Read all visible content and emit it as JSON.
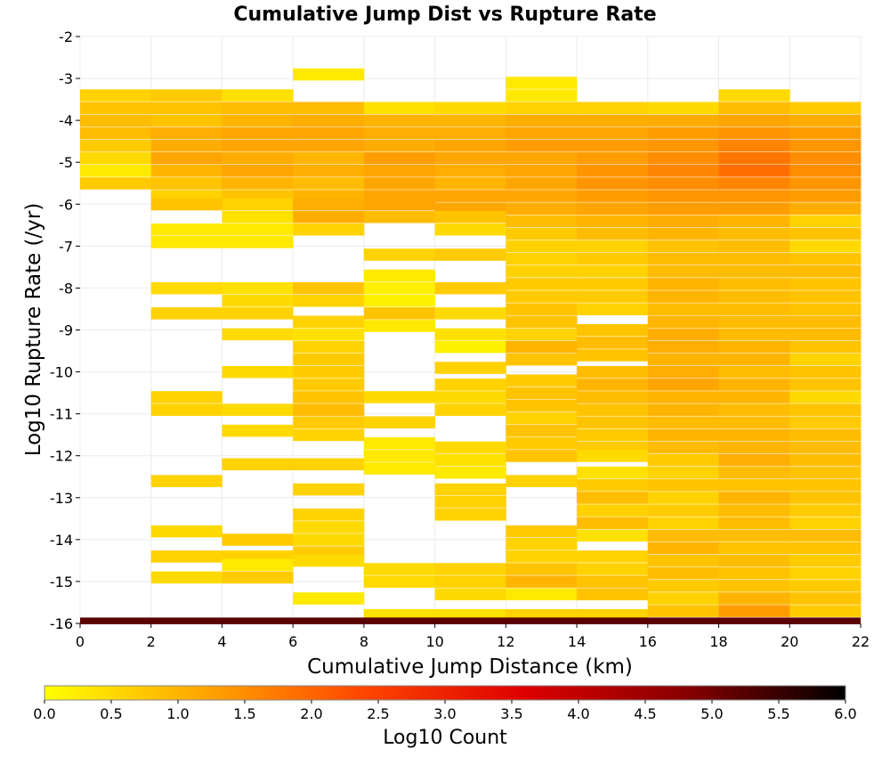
{
  "chart_data": {
    "type": "heatmap",
    "title": "Cumulative Jump Dist vs Rupture Rate",
    "xlabel": "Cumulative Jump Distance (km)",
    "ylabel": "Log10 Rupture Rate (/yr)",
    "xlim": [
      0,
      22
    ],
    "ylim": [
      -16,
      -2
    ],
    "x_ticks": [
      "0",
      "2",
      "4",
      "6",
      "8",
      "10",
      "12",
      "14",
      "16",
      "18",
      "20",
      "22"
    ],
    "y_ticks": [
      "-2",
      "-3",
      "-4",
      "-5",
      "-6",
      "-7",
      "-8",
      "-9",
      "-10",
      "-11",
      "-12",
      "-13",
      "-14",
      "-15",
      "-16"
    ],
    "x_bin_width": 2,
    "y_bin_height": 0.28,
    "x_bins": [
      1,
      3,
      5,
      7,
      9,
      11,
      13,
      15,
      17,
      19,
      21
    ],
    "colorbar": {
      "label": "Log10 Count",
      "range": [
        0,
        6
      ],
      "ticks": [
        "0.0",
        "0.5",
        "1.0",
        "1.5",
        "2.0",
        "2.5",
        "3.0",
        "3.5",
        "4.0",
        "4.5",
        "5.0",
        "5.5",
        "6.0"
      ],
      "colors": [
        "#ffff00",
        "#ffa500",
        "#ff4500",
        "#dd0000",
        "#880000",
        "#000000"
      ]
    },
    "baseline_row": {
      "y": -15.94,
      "value": 5.2,
      "x_range": [
        0,
        22
      ]
    },
    "columns": [
      [
        [
          -3.4,
          0.6
        ],
        [
          -3.7,
          0.8
        ],
        [
          -4.0,
          0.9
        ],
        [
          -4.3,
          0.9
        ],
        [
          -4.6,
          0.7
        ],
        [
          -4.9,
          0.5
        ],
        [
          -5.2,
          0.3
        ],
        [
          -5.5,
          0.7
        ]
      ],
      [
        [
          -3.4,
          0.7
        ],
        [
          -3.7,
          0.8
        ],
        [
          -4.0,
          0.8
        ],
        [
          -4.3,
          1.1
        ],
        [
          -4.6,
          1.1
        ],
        [
          -4.9,
          1.2
        ],
        [
          -5.2,
          1.0
        ],
        [
          -5.5,
          0.8
        ],
        [
          -5.8,
          0.6
        ],
        [
          -6.0,
          0.8
        ],
        [
          -6.6,
          0.3
        ],
        [
          -6.9,
          0.3
        ],
        [
          -8.0,
          0.5
        ],
        [
          -8.6,
          0.6
        ],
        [
          -10.6,
          0.6
        ],
        [
          -10.9,
          0.6
        ],
        [
          -12.6,
          0.6
        ],
        [
          -13.8,
          0.5
        ],
        [
          -14.4,
          0.6
        ],
        [
          -14.9,
          0.5
        ]
      ],
      [
        [
          -3.4,
          0.4
        ],
        [
          -3.7,
          0.9
        ],
        [
          -4.0,
          1.0
        ],
        [
          -4.3,
          1.2
        ],
        [
          -4.6,
          1.2
        ],
        [
          -4.9,
          1.1
        ],
        [
          -5.2,
          1.2
        ],
        [
          -5.5,
          1.0
        ],
        [
          -5.8,
          0.8
        ],
        [
          -6.0,
          0.6
        ],
        [
          -6.3,
          0.4
        ],
        [
          -6.6,
          0.3
        ],
        [
          -6.9,
          0.3
        ],
        [
          -8.0,
          0.4
        ],
        [
          -8.3,
          0.5
        ],
        [
          -8.6,
          0.6
        ],
        [
          -9.1,
          0.5
        ],
        [
          -10.0,
          0.5
        ],
        [
          -10.9,
          0.5
        ],
        [
          -11.4,
          0.5
        ],
        [
          -12.2,
          0.6
        ],
        [
          -14.0,
          0.7
        ],
        [
          -14.4,
          0.6
        ],
        [
          -14.6,
          0.3
        ],
        [
          -14.9,
          0.7
        ]
      ],
      [
        [
          -2.9,
          0.3
        ],
        [
          -3.7,
          0.9
        ],
        [
          -4.0,
          1.1
        ],
        [
          -4.3,
          1.2
        ],
        [
          -4.6,
          1.2
        ],
        [
          -4.9,
          1.0
        ],
        [
          -5.2,
          1.1
        ],
        [
          -5.5,
          0.9
        ],
        [
          -5.8,
          1.0
        ],
        [
          -6.0,
          1.1
        ],
        [
          -6.3,
          1.1
        ],
        [
          -6.6,
          0.6
        ],
        [
          -8.0,
          0.8
        ],
        [
          -8.3,
          0.6
        ],
        [
          -8.8,
          0.6
        ],
        [
          -9.1,
          0.4
        ],
        [
          -9.4,
          0.6
        ],
        [
          -9.7,
          0.7
        ],
        [
          -10.0,
          0.7
        ],
        [
          -10.3,
          0.7
        ],
        [
          -10.6,
          0.8
        ],
        [
          -10.9,
          0.9
        ],
        [
          -11.2,
          0.7
        ],
        [
          -11.5,
          0.6
        ],
        [
          -12.2,
          0.6
        ],
        [
          -12.8,
          0.6
        ],
        [
          -13.4,
          0.6
        ],
        [
          -13.7,
          0.5
        ],
        [
          -14.0,
          0.5
        ],
        [
          -14.3,
          0.7
        ],
        [
          -14.5,
          0.5
        ],
        [
          -15.4,
          0.3
        ]
      ],
      [
        [
          -3.7,
          0.4
        ],
        [
          -4.0,
          1.0
        ],
        [
          -4.3,
          1.1
        ],
        [
          -4.6,
          1.1
        ],
        [
          -4.9,
          1.3
        ],
        [
          -5.2,
          1.2
        ],
        [
          -5.5,
          1.2
        ],
        [
          -5.8,
          1.2
        ],
        [
          -6.0,
          1.2
        ],
        [
          -6.3,
          0.9
        ],
        [
          -7.2,
          0.6
        ],
        [
          -7.7,
          0.3
        ],
        [
          -8.0,
          0.2
        ],
        [
          -8.3,
          0.2
        ],
        [
          -8.6,
          0.8
        ],
        [
          -8.9,
          0.3
        ],
        [
          -10.6,
          0.5
        ],
        [
          -11.2,
          0.6
        ],
        [
          -11.7,
          0.3
        ],
        [
          -12.0,
          0.3
        ],
        [
          -12.3,
          0.3
        ],
        [
          -14.7,
          0.5
        ],
        [
          -15.0,
          0.5
        ],
        [
          -15.8,
          0.4
        ]
      ],
      [
        [
          -3.7,
          0.5
        ],
        [
          -4.0,
          1.0
        ],
        [
          -4.3,
          1.1
        ],
        [
          -4.6,
          1.2
        ],
        [
          -4.9,
          1.2
        ],
        [
          -5.2,
          1.1
        ],
        [
          -5.5,
          1.0
        ],
        [
          -5.8,
          1.2
        ],
        [
          -6.1,
          1.2
        ],
        [
          -6.3,
          0.8
        ],
        [
          -6.6,
          0.5
        ],
        [
          -7.2,
          0.7
        ],
        [
          -8.0,
          0.7
        ],
        [
          -8.6,
          0.5
        ],
        [
          -9.1,
          0.4
        ],
        [
          -9.4,
          0.2
        ],
        [
          -9.9,
          0.6
        ],
        [
          -10.3,
          0.6
        ],
        [
          -10.6,
          0.5
        ],
        [
          -10.9,
          0.6
        ],
        [
          -11.8,
          0.5
        ],
        [
          -12.1,
          0.4
        ],
        [
          -12.4,
          0.3
        ],
        [
          -12.8,
          0.6
        ],
        [
          -13.1,
          0.6
        ],
        [
          -13.4,
          0.6
        ],
        [
          -14.7,
          0.6
        ],
        [
          -15.0,
          0.6
        ],
        [
          -15.3,
          0.5
        ],
        [
          -15.8,
          0.4
        ]
      ],
      [
        [
          -3.1,
          0.3
        ],
        [
          -3.4,
          0.3
        ],
        [
          -3.7,
          0.6
        ],
        [
          -4.0,
          1.1
        ],
        [
          -4.3,
          1.2
        ],
        [
          -4.6,
          1.3
        ],
        [
          -4.9,
          1.2
        ],
        [
          -5.2,
          1.2
        ],
        [
          -5.5,
          1.2
        ],
        [
          -5.8,
          1.2
        ],
        [
          -6.1,
          1.1
        ],
        [
          -6.4,
          0.9
        ],
        [
          -6.7,
          0.7
        ],
        [
          -7.0,
          0.6
        ],
        [
          -7.3,
          0.6
        ],
        [
          -7.6,
          0.6
        ],
        [
          -7.9,
          0.7
        ],
        [
          -8.2,
          0.7
        ],
        [
          -8.5,
          0.8
        ],
        [
          -8.8,
          0.8
        ],
        [
          -9.1,
          0.6
        ],
        [
          -9.4,
          1.0
        ],
        [
          -9.7,
          0.8
        ],
        [
          -10.2,
          0.7
        ],
        [
          -10.5,
          0.8
        ],
        [
          -10.8,
          0.8
        ],
        [
          -11.1,
          0.6
        ],
        [
          -11.4,
          0.8
        ],
        [
          -11.7,
          0.7
        ],
        [
          -12.0,
          0.8
        ],
        [
          -12.6,
          0.6
        ],
        [
          -13.8,
          0.7
        ],
        [
          -14.1,
          0.6
        ],
        [
          -14.4,
          0.6
        ],
        [
          -14.7,
          0.8
        ],
        [
          -15.0,
          1.0
        ],
        [
          -15.3,
          0.3
        ],
        [
          -15.8,
          0.6
        ]
      ],
      [
        [
          -3.7,
          0.6
        ],
        [
          -4.0,
          1.1
        ],
        [
          -4.3,
          1.2
        ],
        [
          -4.6,
          1.3
        ],
        [
          -4.9,
          1.3
        ],
        [
          -5.2,
          1.4
        ],
        [
          -5.5,
          1.4
        ],
        [
          -5.8,
          1.3
        ],
        [
          -6.1,
          1.2
        ],
        [
          -6.4,
          1.0
        ],
        [
          -6.7,
          0.9
        ],
        [
          -7.0,
          0.6
        ],
        [
          -7.3,
          0.7
        ],
        [
          -7.6,
          0.6
        ],
        [
          -7.9,
          0.7
        ],
        [
          -8.2,
          0.7
        ],
        [
          -8.5,
          0.6
        ],
        [
          -9.0,
          0.8
        ],
        [
          -9.3,
          0.9
        ],
        [
          -9.6,
          0.8
        ],
        [
          -10.0,
          0.9
        ],
        [
          -10.3,
          1.0
        ],
        [
          -10.6,
          0.9
        ],
        [
          -10.9,
          0.8
        ],
        [
          -11.2,
          0.8
        ],
        [
          -11.5,
          0.7
        ],
        [
          -11.8,
          0.7
        ],
        [
          -12.0,
          0.5
        ],
        [
          -12.4,
          0.4
        ],
        [
          -12.7,
          0.7
        ],
        [
          -13.0,
          0.9
        ],
        [
          -13.3,
          0.6
        ],
        [
          -13.6,
          0.9
        ],
        [
          -13.9,
          0.4
        ],
        [
          -14.4,
          0.6
        ],
        [
          -14.7,
          0.6
        ],
        [
          -15.0,
          0.8
        ],
        [
          -15.3,
          0.8
        ],
        [
          -15.8,
          0.6
        ]
      ],
      [
        [
          -3.7,
          0.5
        ],
        [
          -4.0,
          1.1
        ],
        [
          -4.3,
          1.3
        ],
        [
          -4.6,
          1.4
        ],
        [
          -4.9,
          1.5
        ],
        [
          -5.2,
          1.6
        ],
        [
          -5.5,
          1.5
        ],
        [
          -5.8,
          1.4
        ],
        [
          -6.1,
          1.3
        ],
        [
          -6.4,
          1.1
        ],
        [
          -6.7,
          1.0
        ],
        [
          -7.0,
          0.8
        ],
        [
          -7.3,
          0.9
        ],
        [
          -7.6,
          0.9
        ],
        [
          -7.9,
          1.0
        ],
        [
          -8.2,
          1.0
        ],
        [
          -8.5,
          0.9
        ],
        [
          -8.8,
          1.0
        ],
        [
          -9.1,
          1.1
        ],
        [
          -9.4,
          1.1
        ],
        [
          -9.7,
          1.0
        ],
        [
          -10.0,
          1.1
        ],
        [
          -10.3,
          1.2
        ],
        [
          -10.6,
          1.0
        ],
        [
          -10.9,
          1.0
        ],
        [
          -11.2,
          0.9
        ],
        [
          -11.5,
          1.0
        ],
        [
          -11.8,
          0.9
        ],
        [
          -12.1,
          0.7
        ],
        [
          -12.4,
          0.6
        ],
        [
          -12.7,
          0.8
        ],
        [
          -13.0,
          0.6
        ],
        [
          -13.3,
          0.7
        ],
        [
          -13.6,
          0.6
        ],
        [
          -13.9,
          0.9
        ],
        [
          -14.2,
          1.0
        ],
        [
          -14.5,
          0.8
        ],
        [
          -14.8,
          0.9
        ],
        [
          -15.1,
          0.7
        ],
        [
          -15.4,
          0.6
        ],
        [
          -15.7,
          0.8
        ]
      ],
      [
        [
          -3.4,
          0.5
        ],
        [
          -3.7,
          0.9
        ],
        [
          -4.0,
          1.2
        ],
        [
          -4.3,
          1.4
        ],
        [
          -4.6,
          1.6
        ],
        [
          -4.9,
          1.8
        ],
        [
          -5.2,
          1.9
        ],
        [
          -5.5,
          1.6
        ],
        [
          -5.8,
          1.4
        ],
        [
          -6.1,
          1.3
        ],
        [
          -6.4,
          1.0
        ],
        [
          -6.7,
          0.9
        ],
        [
          -7.0,
          0.9
        ],
        [
          -7.3,
          0.9
        ],
        [
          -7.6,
          0.9
        ],
        [
          -7.9,
          0.9
        ],
        [
          -8.2,
          0.9
        ],
        [
          -8.5,
          0.9
        ],
        [
          -8.8,
          0.9
        ],
        [
          -9.1,
          0.9
        ],
        [
          -9.4,
          1.0
        ],
        [
          -9.7,
          1.0
        ],
        [
          -10.0,
          0.9
        ],
        [
          -10.3,
          1.0
        ],
        [
          -10.6,
          1.0
        ],
        [
          -10.9,
          0.9
        ],
        [
          -11.2,
          0.9
        ],
        [
          -11.5,
          1.0
        ],
        [
          -11.8,
          1.0
        ],
        [
          -12.1,
          1.1
        ],
        [
          -12.4,
          0.9
        ],
        [
          -12.7,
          0.8
        ],
        [
          -13.0,
          1.0
        ],
        [
          -13.3,
          0.9
        ],
        [
          -13.6,
          0.9
        ],
        [
          -13.9,
          0.9
        ],
        [
          -14.2,
          0.8
        ],
        [
          -14.5,
          0.9
        ],
        [
          -14.8,
          0.8
        ],
        [
          -15.1,
          0.8
        ],
        [
          -15.4,
          1.0
        ],
        [
          -15.7,
          1.3
        ]
      ],
      [
        [
          -3.7,
          0.7
        ],
        [
          -4.0,
          1.1
        ],
        [
          -4.3,
          1.3
        ],
        [
          -4.6,
          1.4
        ],
        [
          -4.9,
          1.5
        ],
        [
          -5.2,
          1.5
        ],
        [
          -5.5,
          1.4
        ],
        [
          -5.8,
          1.3
        ],
        [
          -6.1,
          1.1
        ],
        [
          -6.4,
          0.6
        ],
        [
          -6.7,
          0.8
        ],
        [
          -7.0,
          0.5
        ],
        [
          -7.3,
          0.8
        ],
        [
          -7.6,
          0.9
        ],
        [
          -7.9,
          0.8
        ],
        [
          -8.2,
          0.8
        ],
        [
          -8.5,
          0.8
        ],
        [
          -8.8,
          0.9
        ],
        [
          -9.1,
          0.9
        ],
        [
          -9.4,
          0.8
        ],
        [
          -9.7,
          0.6
        ],
        [
          -10.0,
          0.8
        ],
        [
          -10.3,
          0.8
        ],
        [
          -10.6,
          0.5
        ],
        [
          -10.9,
          0.8
        ],
        [
          -11.2,
          0.7
        ],
        [
          -11.5,
          0.9
        ],
        [
          -11.8,
          0.9
        ],
        [
          -12.1,
          0.9
        ],
        [
          -12.4,
          0.8
        ],
        [
          -12.7,
          0.8
        ],
        [
          -13.0,
          0.8
        ],
        [
          -13.3,
          0.7
        ],
        [
          -13.6,
          0.6
        ],
        [
          -13.9,
          0.9
        ],
        [
          -14.2,
          0.8
        ],
        [
          -14.5,
          0.7
        ],
        [
          -14.8,
          0.6
        ],
        [
          -15.1,
          0.7
        ],
        [
          -15.4,
          0.8
        ],
        [
          -15.7,
          0.7
        ]
      ]
    ]
  }
}
